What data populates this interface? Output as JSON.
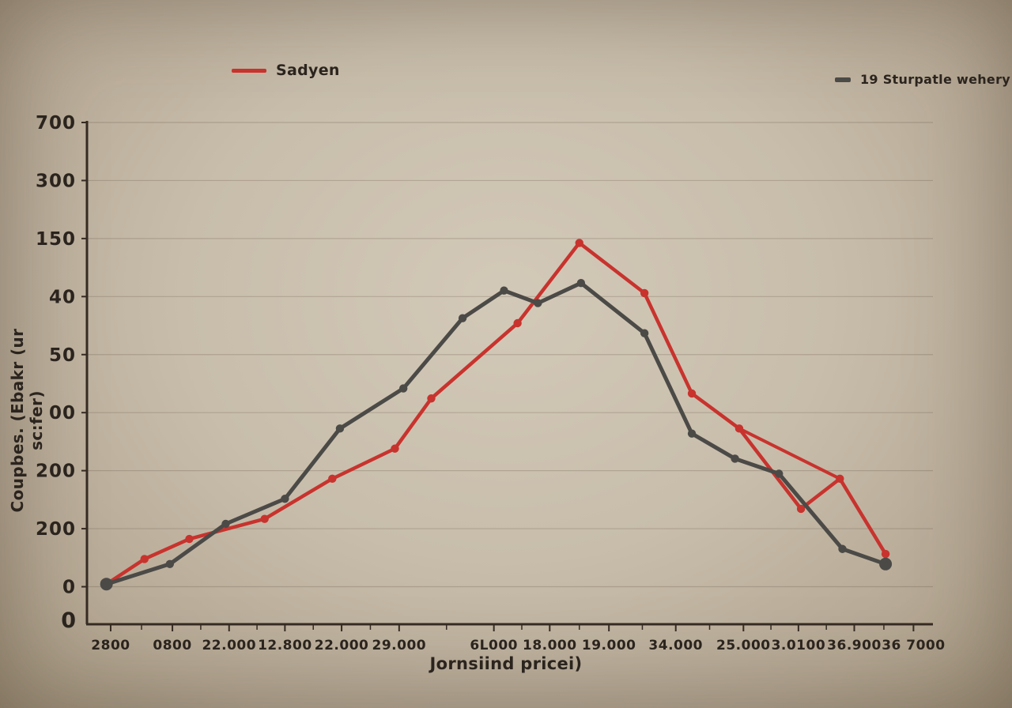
{
  "chart_data": {
    "type": "line",
    "title": "",
    "xlabel": "Jornsiind pricei)",
    "ylabel": "Coupbes. (Ebakr (ur sc:fer)",
    "origin_label": "0",
    "grid": true,
    "legend_position": "top",
    "y_tick_labels": [
      "700",
      "300",
      "150",
      "40",
      "50",
      "00",
      "200",
      "200",
      "0"
    ],
    "x_tick_labels": [
      "2800",
      "0800",
      "22.000",
      "12.800",
      "22.000",
      "29.000",
      "6L000",
      "18.000",
      "19.000",
      "34.000",
      "25.000",
      "3.0100",
      "36.900",
      "36 7000"
    ],
    "x_tick_pos": [
      2.8,
      10.1,
      16.8,
      23.4,
      30.1,
      36.9,
      48.1,
      54.7,
      61.7,
      69.6,
      77.6,
      84.1,
      90.7,
      97.7
    ],
    "legend": [
      {
        "name": "Sadyen",
        "color": "#c8332e"
      },
      {
        "name": "19 Sturpatle wehery",
        "color": "#4b4a47"
      }
    ],
    "series": [
      {
        "name": "Sadyen",
        "color": "#c8332e",
        "points": [
          [
            2.3,
            8
          ],
          [
            6.8,
            13
          ],
          [
            12.1,
            17
          ],
          [
            21,
            21
          ],
          [
            29,
            29
          ],
          [
            36.4,
            35
          ],
          [
            40.7,
            45
          ],
          [
            50.9,
            60
          ],
          [
            58.2,
            76
          ],
          [
            65.9,
            66
          ],
          [
            71.5,
            46
          ],
          [
            77.1,
            39
          ],
          [
            84.4,
            23
          ],
          [
            89,
            29
          ],
          [
            94.4,
            14
          ]
        ]
      },
      {
        "name": "19 Sturpatle wehery",
        "color": "#4b4a47",
        "points": [
          [
            2.3,
            8
          ],
          [
            9.8,
            12
          ],
          [
            16.4,
            20
          ],
          [
            23.4,
            25
          ],
          [
            29.9,
            39
          ],
          [
            37.4,
            47
          ],
          [
            44.4,
            61
          ],
          [
            49.3,
            66.5
          ],
          [
            53.3,
            64
          ],
          [
            58.4,
            68
          ],
          [
            65.9,
            58
          ],
          [
            71.5,
            38
          ],
          [
            76.6,
            33
          ],
          [
            81.8,
            30
          ],
          [
            89.3,
            15
          ],
          [
            94.4,
            12
          ]
        ]
      }
    ],
    "extra_segments": [
      {
        "color": "#c8332e",
        "from": [
          77.1,
          39
        ],
        "to": [
          89,
          29
        ]
      }
    ],
    "colors": {
      "background": "#c8bdab",
      "text": "#2b241e",
      "axis": "#352b22",
      "grid": "rgba(80,65,50,0.22)",
      "red_series": "#c8332e",
      "dark_series": "#4b4a47"
    }
  }
}
